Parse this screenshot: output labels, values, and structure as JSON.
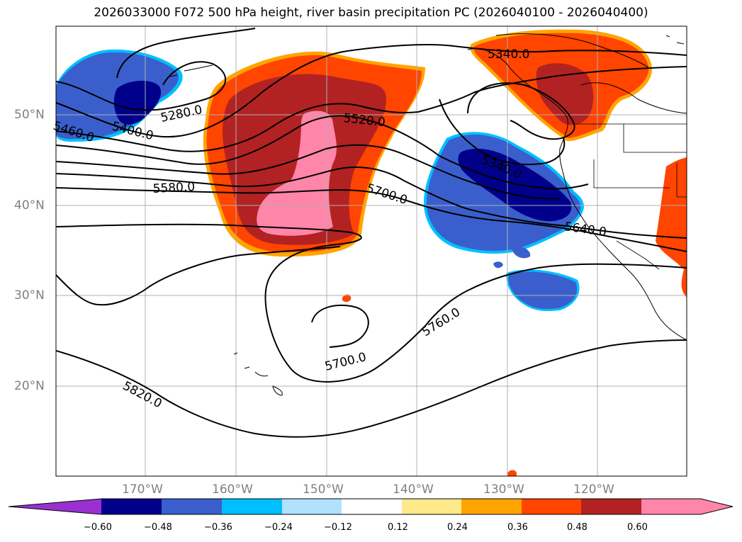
{
  "title": "2026033000 F072 500 hPa height, river basin precipitation PC (2026040100 - 2026040400)",
  "lat_labels": [
    "50°N",
    "40°N",
    "30°N",
    "20°N"
  ],
  "lon_labels": [
    "170°W",
    "160°W",
    "150°W",
    "140°W",
    "130°W",
    "120°W"
  ],
  "contour_labels": [
    "5460.0",
    "5400.0",
    "5280.0",
    "5520.0",
    "5580.0",
    "5700.0",
    "5340.0",
    "5640.0",
    "5760.0",
    "5700.0",
    "5820.0",
    "5340.0"
  ],
  "colorbar": {
    "ticks": [
      "−0.60",
      "−0.48",
      "−0.36",
      "−0.24",
      "−0.12",
      "0.12",
      "0.24",
      "0.36",
      "0.48",
      "0.60"
    ],
    "colors": [
      "#9b30d0",
      "#00008b",
      "#3a5fcd",
      "#00bfff",
      "#b0e2ff",
      "#ffffff",
      "#ffe98a",
      "#ffa500",
      "#ff4500",
      "#b22222",
      "#ff85a9",
      "#ff85a9"
    ]
  },
  "palette": {
    "pink": "#ff85a9",
    "darkred": "#b22222",
    "orangered": "#ff4500",
    "orange": "#ffa500",
    "yellow": "#ffe98a",
    "navy": "#00008b",
    "blue": "#3a5fcd",
    "cyan": "#00bfff"
  }
}
